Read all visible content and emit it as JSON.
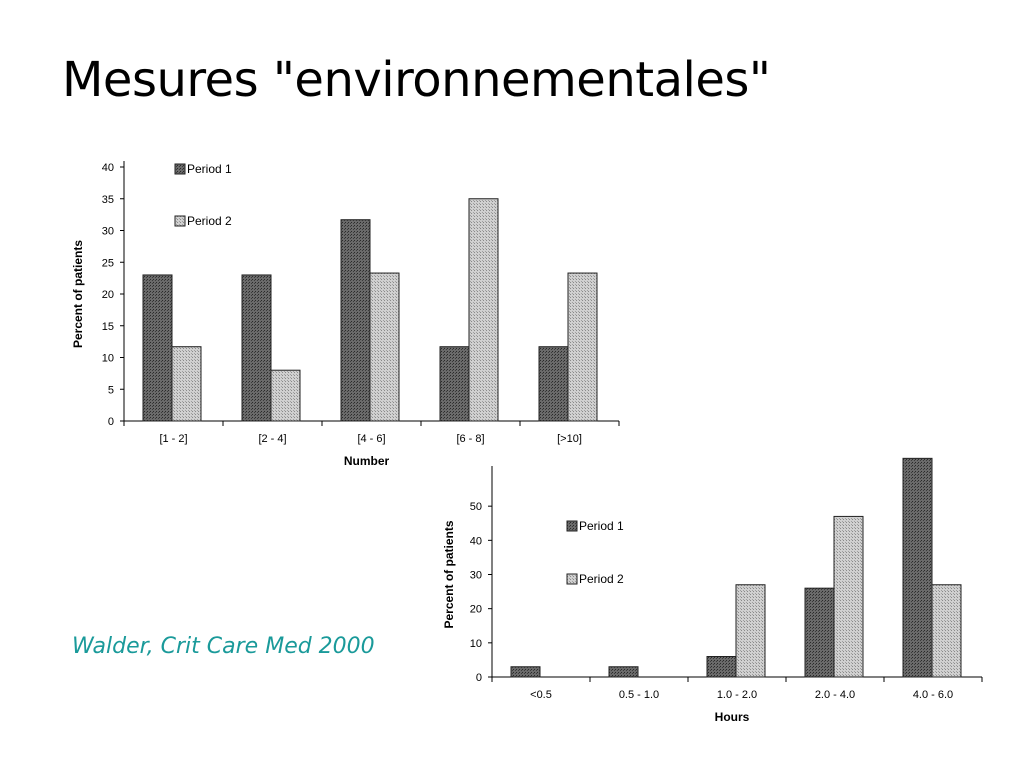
{
  "slide": {
    "title": "Mesures \"environnementales\"",
    "citation": "Walder, Crit Care Med 2000"
  },
  "chart_data": [
    {
      "type": "bar",
      "xlabel": "Number",
      "ylabel": "Percent of patients",
      "ylim": [
        0,
        40
      ],
      "yticks": [
        0,
        5,
        10,
        15,
        20,
        25,
        30,
        35,
        40
      ],
      "categories": [
        "[1 -  2]",
        "[2 - 4]",
        "[4 - 6]",
        "[6 - 8]",
        "[>10]"
      ],
      "legend_position": "top-left",
      "series": [
        {
          "name": "Period 1",
          "values": [
            23,
            23,
            31.7,
            11.7,
            11.7
          ],
          "color": "#5a5a5a"
        },
        {
          "name": "Period 2",
          "values": [
            11.7,
            8,
            23.3,
            35,
            23.3
          ],
          "color": "#b8b8b8"
        }
      ]
    },
    {
      "type": "bar",
      "xlabel": "Hours",
      "ylabel": "Percent of patients",
      "ylim": [
        0,
        60
      ],
      "yticks": [
        0,
        10,
        20,
        30,
        40,
        50
      ],
      "categories": [
        "<0.5",
        "0.5 - 1.0",
        "1.0 - 2.0",
        "2.0 - 4.0",
        "4.0 - 6.0"
      ],
      "legend_position": "top-left",
      "series": [
        {
          "name": "Period 1",
          "values": [
            3,
            3,
            6,
            26,
            64
          ],
          "color": "#5a5a5a"
        },
        {
          "name": "Period 2",
          "values": [
            0,
            0,
            27,
            47,
            27
          ],
          "color": "#b8b8b8"
        }
      ]
    }
  ]
}
